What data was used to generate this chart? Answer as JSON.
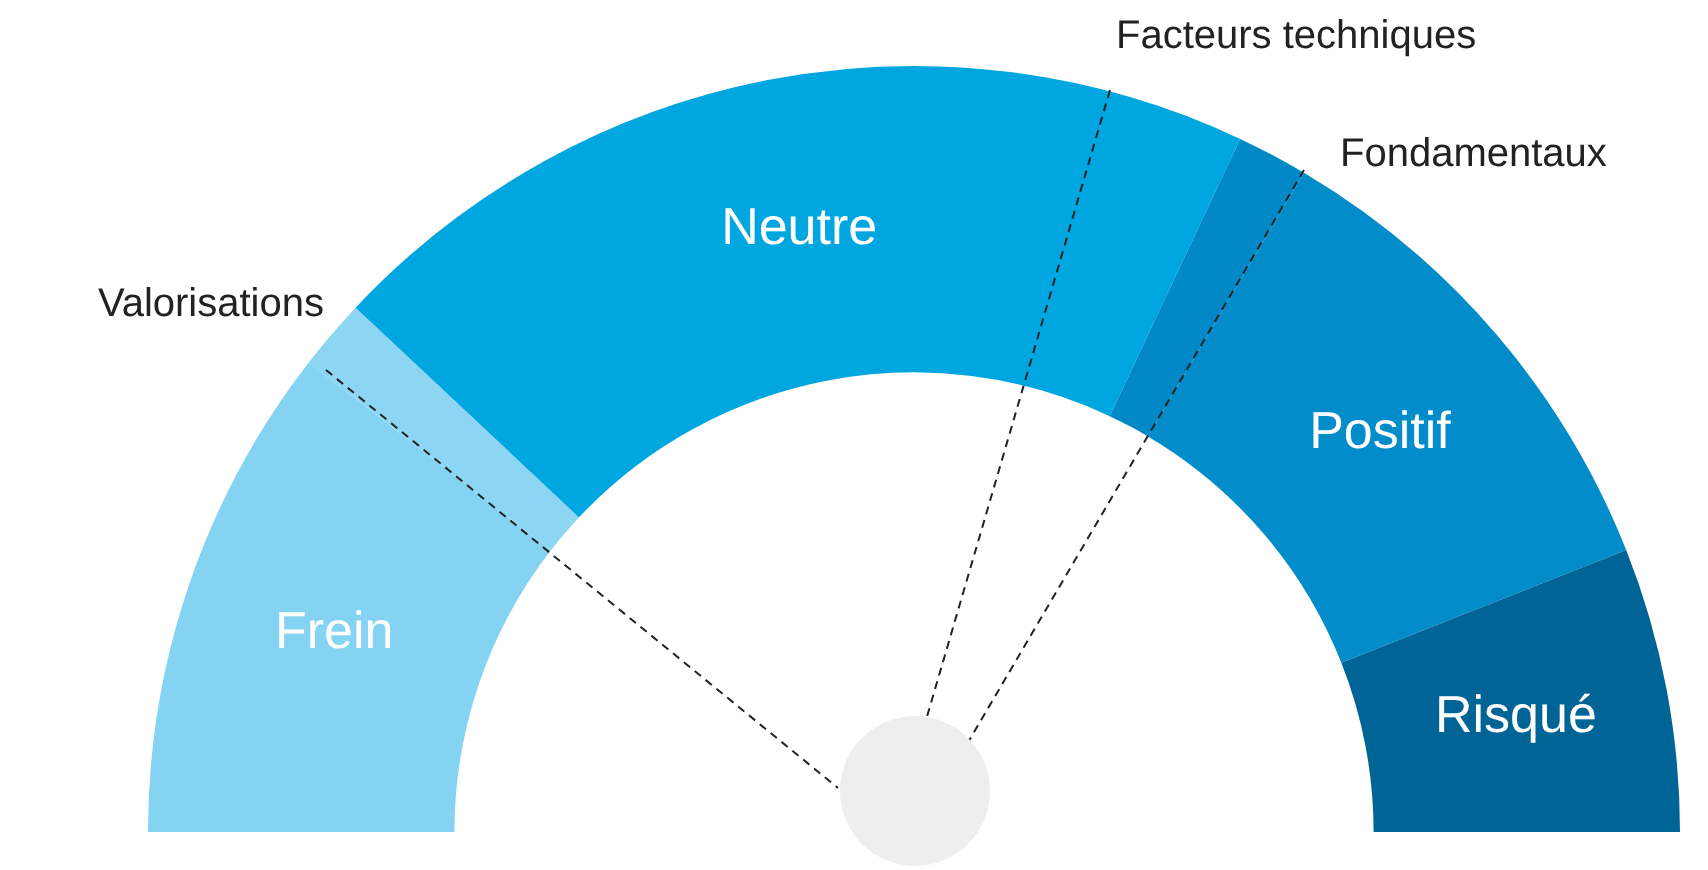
{
  "chart_data": {
    "type": "donut",
    "categories": [
      "Frein",
      null,
      "Neutre",
      null,
      "Positif",
      "Risqué"
    ],
    "values": [
      21,
      3,
      40,
      3,
      21,
      12
    ],
    "colors": [
      "#85d3f2",
      "#8dd6f3",
      "#00a6e0",
      "#0089c6",
      "#038cca",
      "#006496"
    ],
    "legend": false,
    "annotations": [
      "Valorisations",
      "Facteurs techniques",
      "Fondamentaux"
    ]
  }
}
